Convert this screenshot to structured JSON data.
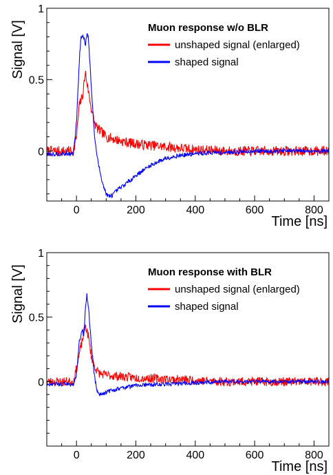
{
  "chart_data": [
    {
      "type": "line",
      "legend_title": "Muon response w/o BLR",
      "xlabel": "Time [ns]",
      "ylabel": "Signal [V]",
      "xlim": [
        -100,
        850
      ],
      "ylim": [
        -0.35,
        1.0
      ],
      "xticks": [
        "0",
        "200",
        "400",
        "600",
        "800"
      ],
      "yticks": [
        "0",
        "0.5",
        "1"
      ],
      "xtick_values": [
        0,
        200,
        400,
        600,
        800
      ],
      "ytick_values": [
        0,
        0.5,
        1.0
      ],
      "legend_position": "top-right",
      "grid": false,
      "series": [
        {
          "name": "unshaped signal (enlarged)",
          "color": "#ff0000",
          "noise": 0.035,
          "x": [
            -100,
            -10,
            0,
            10,
            20,
            30,
            40,
            50,
            60,
            70,
            80,
            100,
            150,
            200,
            250,
            300,
            400,
            500,
            600,
            700,
            850
          ],
          "y": [
            0,
            0,
            0.1,
            0.33,
            0.38,
            0.55,
            0.42,
            0.3,
            0.2,
            0.16,
            0.14,
            0.1,
            0.07,
            0.05,
            0.04,
            0.03,
            0.01,
            0,
            0,
            0,
            0
          ]
        },
        {
          "name": "shaped signal",
          "color": "#0000ff",
          "noise": 0.015,
          "x": [
            -100,
            -10,
            0,
            10,
            15,
            25,
            30,
            35,
            40,
            50,
            60,
            70,
            80,
            90,
            100,
            110,
            120,
            140,
            160,
            200,
            250,
            300,
            350,
            400,
            450,
            500,
            600,
            700,
            850
          ],
          "y": [
            -0.02,
            -0.02,
            0.2,
            0.65,
            0.8,
            0.8,
            0.74,
            0.83,
            0.8,
            0.45,
            0.12,
            -0.05,
            -0.15,
            -0.24,
            -0.3,
            -0.32,
            -0.31,
            -0.27,
            -0.24,
            -0.17,
            -0.1,
            -0.05,
            -0.03,
            -0.02,
            -0.01,
            -0.01,
            0,
            0,
            0
          ]
        }
      ]
    },
    {
      "type": "line",
      "legend_title": "Muon response with BLR",
      "xlabel": "Time [ns]",
      "ylabel": "Signal [V]",
      "xlim": [
        -100,
        850
      ],
      "ylim": [
        -0.5,
        1.0
      ],
      "xticks": [
        "0",
        "200",
        "400",
        "600",
        "800"
      ],
      "yticks": [
        "0",
        "0.5",
        "1"
      ],
      "xtick_values": [
        0,
        200,
        400,
        600,
        800
      ],
      "ytick_values": [
        0,
        0.5,
        1.0
      ],
      "legend_position": "top-right",
      "grid": false,
      "series": [
        {
          "name": "unshaped signal (enlarged)",
          "color": "#ff0000",
          "noise": 0.035,
          "x": [
            -100,
            -10,
            0,
            10,
            20,
            30,
            40,
            50,
            60,
            70,
            80,
            100,
            150,
            200,
            300,
            400,
            500,
            600,
            700,
            850
          ],
          "y": [
            0,
            0,
            0.1,
            0.22,
            0.32,
            0.44,
            0.35,
            0.2,
            0.12,
            0.08,
            0.06,
            0.05,
            0.04,
            0.03,
            0.02,
            0.01,
            0,
            0,
            0,
            0
          ]
        },
        {
          "name": "shaped signal",
          "color": "#0000ff",
          "noise": 0.015,
          "x": [
            -100,
            -10,
            0,
            10,
            20,
            25,
            30,
            35,
            40,
            50,
            60,
            70,
            80,
            100,
            150,
            200,
            300,
            400,
            500,
            600,
            700,
            850
          ],
          "y": [
            -0.02,
            -0.02,
            0.05,
            0.32,
            0.4,
            0.35,
            0.58,
            0.67,
            0.58,
            0.3,
            0.05,
            -0.08,
            -0.1,
            -0.08,
            -0.05,
            -0.03,
            -0.02,
            -0.01,
            0,
            0,
            0,
            0
          ]
        }
      ]
    }
  ]
}
